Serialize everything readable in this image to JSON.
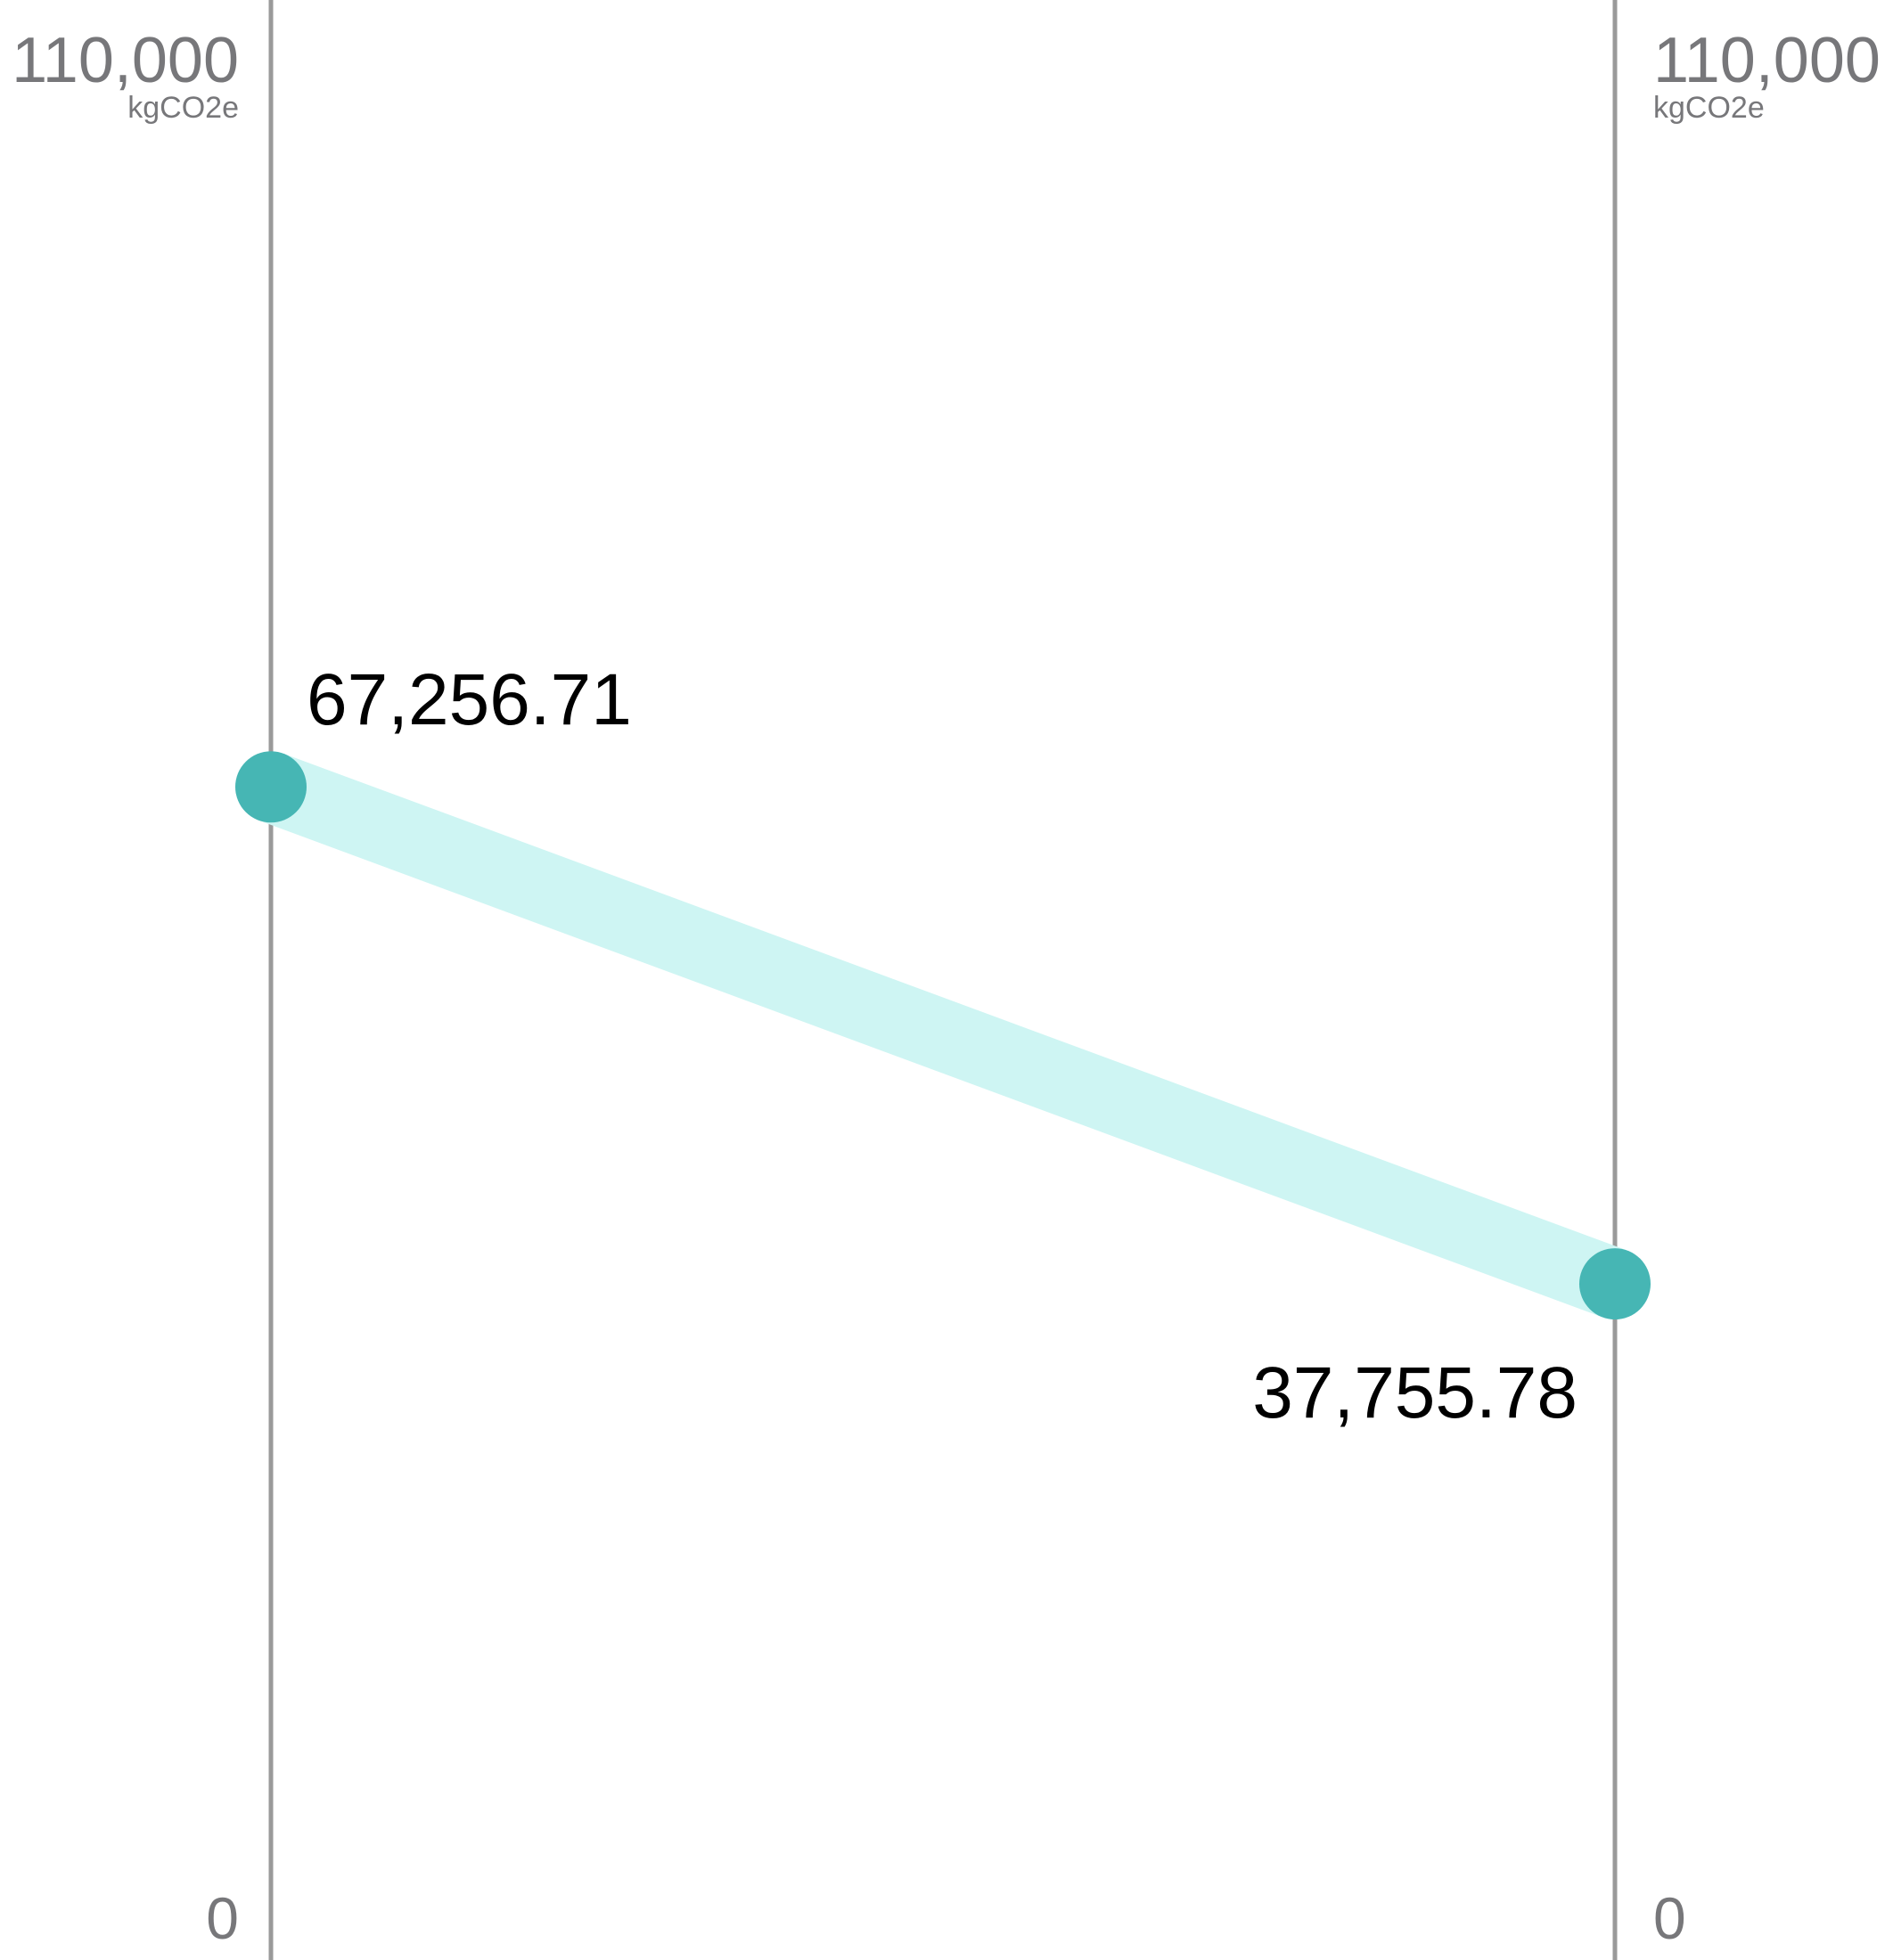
{
  "chart_data": {
    "type": "line",
    "ylim": [
      0,
      110000
    ],
    "y_unit": "kgCO2e",
    "axes": [
      {
        "max_label": "110,000",
        "unit_label": "kgCO2e",
        "min_label": "0"
      },
      {
        "max_label": "110,000",
        "unit_label": "kgCO2e",
        "min_label": "0"
      }
    ],
    "series": [
      {
        "values": [
          67256.71,
          37755.78
        ],
        "labels": [
          "67,256.71",
          "37,755.78"
        ]
      }
    ]
  },
  "colors": {
    "band": "#cef5f3",
    "point": "#46b6b4",
    "axis": "#9a9a9a",
    "tick_text": "#77777a",
    "label_text": "#000000"
  }
}
